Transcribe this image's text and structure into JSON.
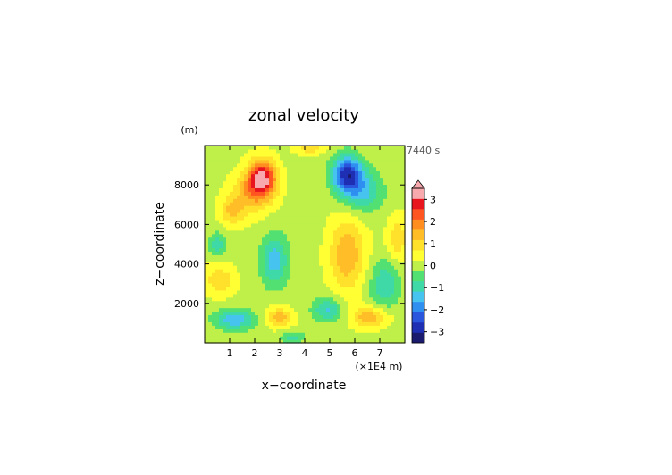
{
  "chart_data": {
    "type": "heatmap",
    "title": "zonal velocity",
    "xlabel": "x−coordinate",
    "ylabel": "z−coordinate",
    "x_unit": "(×1E4 m)",
    "y_unit": "(m)",
    "time_label": "7440 s",
    "xlim": [
      0,
      8
    ],
    "ylim": [
      0,
      10000
    ],
    "x_ticks": [
      1,
      2,
      3,
      4,
      5,
      6,
      7
    ],
    "y_ticks": [
      2000,
      4000,
      6000,
      8000
    ],
    "x_tick_labels": [
      "1",
      "2",
      "3",
      "4",
      "5",
      "6",
      "7"
    ],
    "y_tick_labels": [
      "2000",
      "4000",
      "6000",
      "8000"
    ],
    "colorbar": {
      "range": [
        -3.5,
        3.5
      ],
      "step": 0.5,
      "tick_values": [
        3,
        2,
        1,
        0,
        -1,
        -2,
        -3
      ],
      "tick_labels": [
        "3",
        "2",
        "1",
        "0",
        "−1",
        "−2",
        "−3"
      ],
      "extend": "max",
      "colors": [
        "#1a1a6e",
        "#1f2fb4",
        "#2a55dd",
        "#2e8ff0",
        "#46c4ef",
        "#3fd9a8",
        "#52e073",
        "#bff04a",
        "#ffff33",
        "#ffe02b",
        "#ffbe28",
        "#ff8d1f",
        "#ff5520",
        "#e8151f",
        "#f7a9ad"
      ]
    },
    "features": [
      {
        "x": 2.3,
        "z": 8400,
        "value": 3.2,
        "sx": 0.55,
        "sz": 900,
        "rot": -30
      },
      {
        "x": 1.9,
        "z": 7600,
        "value": 1.4,
        "sx": 0.8,
        "sz": 1000,
        "rot": -30
      },
      {
        "x": 5.7,
        "z": 8600,
        "value": -3.0,
        "sx": 0.6,
        "sz": 900,
        "rot": 30
      },
      {
        "x": 6.3,
        "z": 7700,
        "value": -1.5,
        "sx": 0.8,
        "sz": 1000,
        "rot": 30
      },
      {
        "x": 5.7,
        "z": 4500,
        "value": 1.6,
        "sx": 0.7,
        "sz": 1800,
        "rot": 15
      },
      {
        "x": 2.8,
        "z": 4200,
        "value": -1.6,
        "sx": 0.55,
        "sz": 1300,
        "rot": -20
      },
      {
        "x": 1.1,
        "z": 6700,
        "value": 1.2,
        "sx": 0.5,
        "sz": 700,
        "rot": 0
      },
      {
        "x": 0.5,
        "z": 5000,
        "value": -1.2,
        "sx": 0.3,
        "sz": 600,
        "rot": 0
      },
      {
        "x": 0.6,
        "z": 3200,
        "value": 1.0,
        "sx": 0.6,
        "sz": 800,
        "rot": 0
      },
      {
        "x": 1.2,
        "z": 1200,
        "value": -1.8,
        "sx": 0.8,
        "sz": 500,
        "rot": 0
      },
      {
        "x": 3.0,
        "z": 1300,
        "value": 1.5,
        "sx": 0.5,
        "sz": 500,
        "rot": -25
      },
      {
        "x": 6.6,
        "z": 1300,
        "value": 1.6,
        "sx": 0.7,
        "sz": 500,
        "rot": 0
      },
      {
        "x": 7.2,
        "z": 3000,
        "value": -1.3,
        "sx": 0.6,
        "sz": 1200,
        "rot": 30
      },
      {
        "x": 4.9,
        "z": 1700,
        "value": -1.4,
        "sx": 0.6,
        "sz": 600,
        "rot": 30
      },
      {
        "x": 7.7,
        "z": 5300,
        "value": 1.0,
        "sx": 0.4,
        "sz": 1200,
        "rot": 0
      },
      {
        "x": 3.5,
        "z": 300,
        "value": -1.0,
        "sx": 0.5,
        "sz": 300,
        "rot": 0
      },
      {
        "x": 4.2,
        "z": 9900,
        "value": 1.0,
        "sx": 0.6,
        "sz": 300,
        "rot": 0
      }
    ]
  }
}
